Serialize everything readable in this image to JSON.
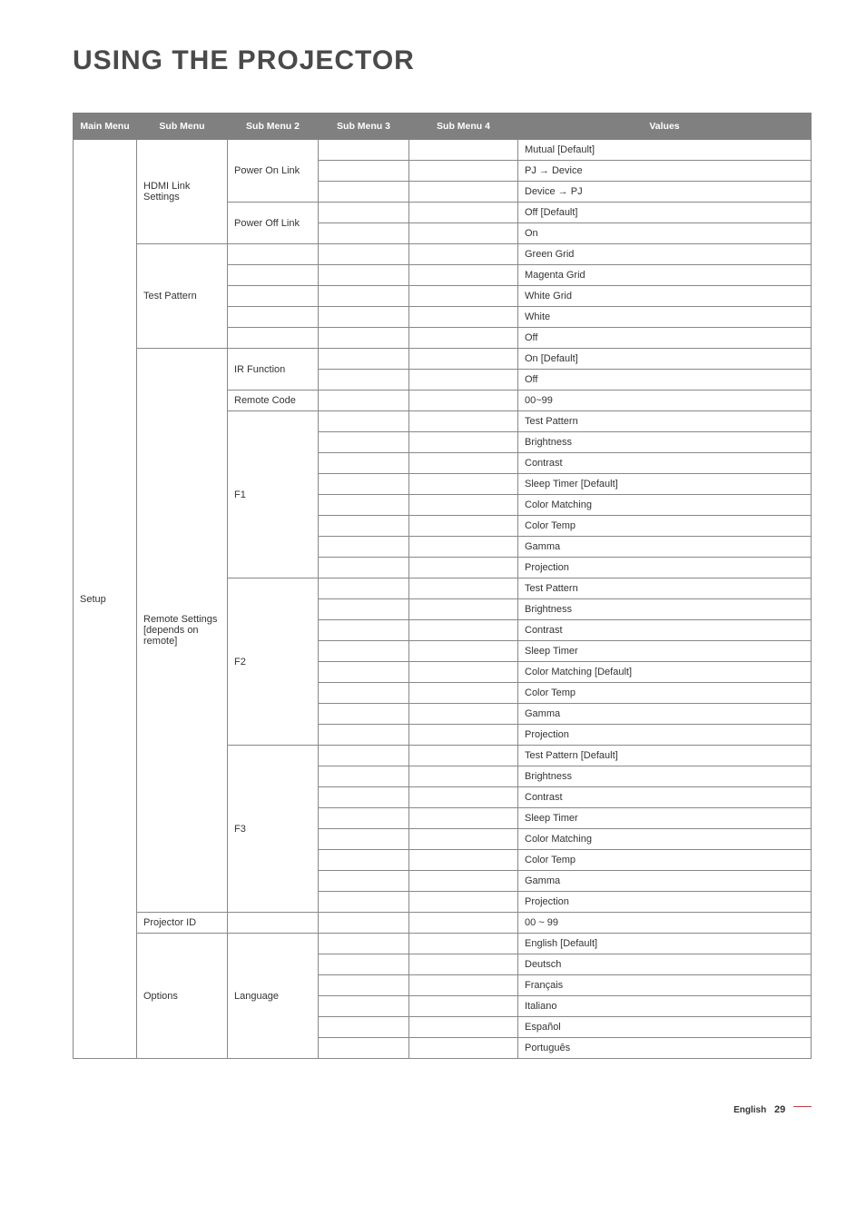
{
  "title": "USING THE PROJECTOR",
  "headers": {
    "main": "Main Menu",
    "sub": "Sub Menu",
    "sub2": "Sub Menu 2",
    "sub3": "Sub Menu 3",
    "sub4": "Sub Menu 4",
    "values": "Values"
  },
  "mainMenu": "Setup",
  "subgroups": {
    "hdmiLink": "HDMI Link Settings",
    "testPattern": "Test Pattern",
    "remote": "Remote Settings [depends on remote]",
    "projectorId": "Projector ID",
    "options": "Options"
  },
  "sub2": {
    "powerOn": "Power On Link",
    "powerOff": "Power Off Link",
    "irFunction": "IR Function",
    "remoteCode": "Remote Code",
    "f1": "F1",
    "f2": "F2",
    "f3": "F3",
    "language": "Language"
  },
  "values": {
    "mutualDefault": "Mutual [Default]",
    "pjDevice": "PJ → Device",
    "devicePj": "Device → PJ",
    "offDefault": "Off [Default]",
    "on": "On",
    "greenGrid": "Green Grid",
    "magentaGrid": "Magenta Grid",
    "whiteGrid": "White Grid",
    "white": "White",
    "off": "Off",
    "onDefault": "On [Default]",
    "range0099": "00~99",
    "testPattern": "Test Pattern",
    "brightness": "Brightness",
    "contrast": "Contrast",
    "sleepTimerDefault": "Sleep Timer [Default]",
    "colorMatching": "Color Matching",
    "colorTemp": "Color Temp",
    "gamma": "Gamma",
    "projection": "Projection",
    "sleepTimer": "Sleep Timer",
    "colorMatchingDefault": "Color Matching [Default]",
    "testPatternDefault": "Test Pattern [Default]",
    "range00_99": "00 ~ 99",
    "englishDefault": "English [Default]",
    "deutsch": "Deutsch",
    "francais": "Français",
    "italiano": "Italiano",
    "espanol": "Español",
    "portugues": "Português"
  },
  "footer": {
    "lang": "English",
    "page": "29"
  }
}
